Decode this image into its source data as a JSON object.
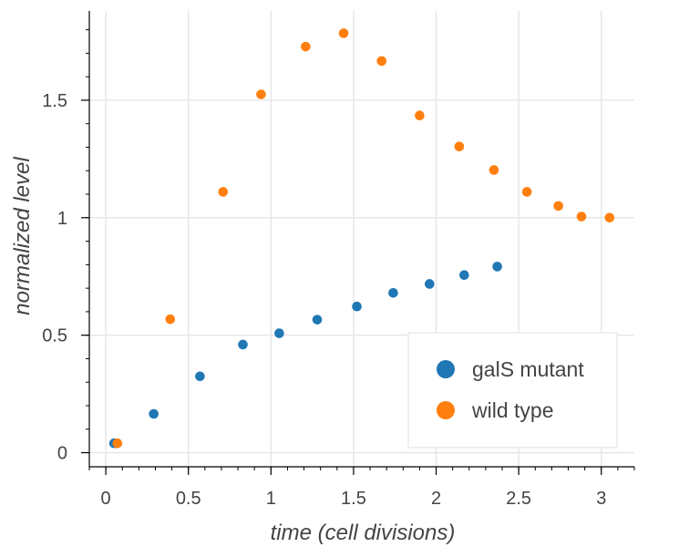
{
  "chart_data": {
    "type": "scatter",
    "title": "",
    "xlabel": "time (cell divisions)",
    "ylabel": "normalized level",
    "xlim": [
      -0.1,
      3.2
    ],
    "ylim": [
      -0.06,
      1.88
    ],
    "x_ticks": [
      0,
      0.5,
      1,
      1.5,
      2,
      2.5,
      3
    ],
    "x_tick_labels": [
      "0",
      "0.5",
      "1",
      "1.5",
      "2",
      "2.5",
      "3"
    ],
    "y_ticks": [
      0,
      0.5,
      1,
      1.5
    ],
    "y_tick_labels": [
      "0",
      "0.5",
      "1",
      "1.5"
    ],
    "grid": true,
    "legend_position": "bottom-right",
    "series": [
      {
        "name": "galS mutant",
        "color": "#1f77b4",
        "x": [
          0.05,
          0.29,
          0.57,
          0.83,
          1.05,
          1.28,
          1.52,
          1.74,
          1.96,
          2.17,
          2.37
        ],
        "y": [
          0.04,
          0.165,
          0.325,
          0.46,
          0.508,
          0.566,
          0.622,
          0.68,
          0.718,
          0.756,
          0.792
        ]
      },
      {
        "name": "wild type",
        "color": "#ff7f0e",
        "x": [
          0.07,
          0.39,
          0.71,
          0.94,
          1.21,
          1.44,
          1.67,
          1.9,
          2.14,
          2.35,
          2.55,
          2.74,
          2.88,
          3.05
        ],
        "y": [
          0.04,
          0.568,
          1.11,
          1.525,
          1.728,
          1.785,
          1.667,
          1.435,
          1.303,
          1.203,
          1.11,
          1.05,
          1.005,
          1.0
        ]
      }
    ]
  }
}
